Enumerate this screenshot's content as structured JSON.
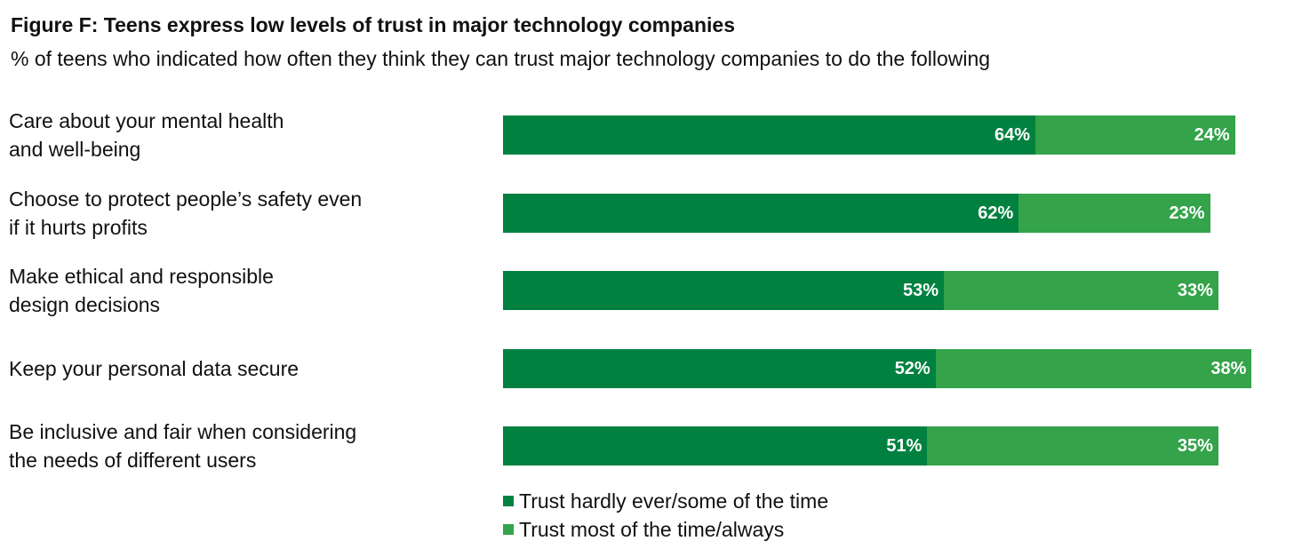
{
  "colors": {
    "series1": "#008140",
    "series2": "#34a34a",
    "label_text": "#ffffff"
  },
  "chart_data": {
    "type": "bar",
    "orientation": "horizontal",
    "stacked": true,
    "title": "Figure F: Teens express low levels of trust in major technology companies",
    "subtitle": "% of teens who indicated how often they think they can trust major technology companies to do the following",
    "categories": [
      "Care about your mental health\nand well-being",
      "Choose to protect people’s safety even\nif it hurts profits",
      "Make ethical and responsible\ndesign decisions",
      "Keep your personal data secure",
      "Be inclusive and fair when considering\nthe needs of different users"
    ],
    "series": [
      {
        "name": "Trust hardly ever/some of the time",
        "values": [
          64,
          62,
          53,
          52,
          51
        ],
        "labels": [
          "64%",
          "62%",
          "53%",
          "52%",
          "51%"
        ]
      },
      {
        "name": "Trust most of the time/always",
        "values": [
          24,
          23,
          33,
          38,
          35
        ],
        "labels": [
          "24%",
          "23%",
          "33%",
          "38%",
          "35%"
        ]
      }
    ],
    "xlim": [
      0,
      90
    ],
    "grid": false,
    "legend_position": "bottom"
  }
}
